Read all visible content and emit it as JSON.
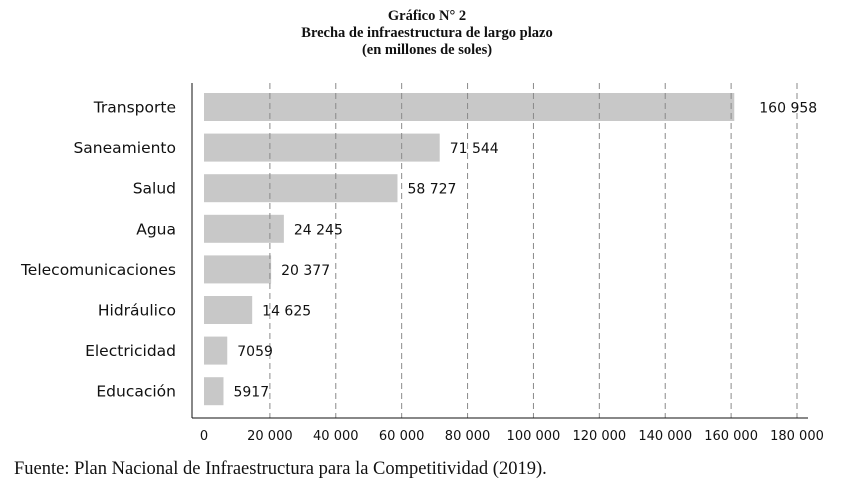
{
  "header": {
    "label": "Gráfico N° 2",
    "title": "Brecha de infraestructura de largo plazo",
    "subtitle": "(en millones de soles)"
  },
  "source": "Fuente: Plan Nacional de Infraestructura para la Competitividad (2019).",
  "chart_data": {
    "type": "bar",
    "orientation": "horizontal",
    "title": "Brecha de infraestructura de largo plazo",
    "subtitle": "(en millones de soles)",
    "categories": [
      "Transporte",
      "Saneamiento",
      "Salud",
      "Agua",
      "Telecomunicaciones",
      "Hidráulico",
      "Electricidad",
      "Educación"
    ],
    "values": [
      160958,
      71544,
      58727,
      24245,
      20377,
      14625,
      7059,
      5917
    ],
    "value_labels": [
      "160 958",
      "71 544",
      "58 727",
      "24 245",
      "20 377",
      "14 625",
      "7059",
      "5917"
    ],
    "x_ticks": [
      0,
      20000,
      40000,
      60000,
      80000,
      100000,
      120000,
      140000,
      160000,
      180000
    ],
    "x_tick_labels": [
      "0",
      "20 000",
      "40 000",
      "60 000",
      "80 000",
      "100 000",
      "120 000",
      "140 000",
      "160 000",
      "180 000"
    ],
    "xlim": [
      0,
      180000
    ],
    "xlabel": "",
    "ylabel": "",
    "grid": "vertical dashed",
    "bar_color": "#c8c8c8",
    "grid_color": "#8a8a8a"
  }
}
